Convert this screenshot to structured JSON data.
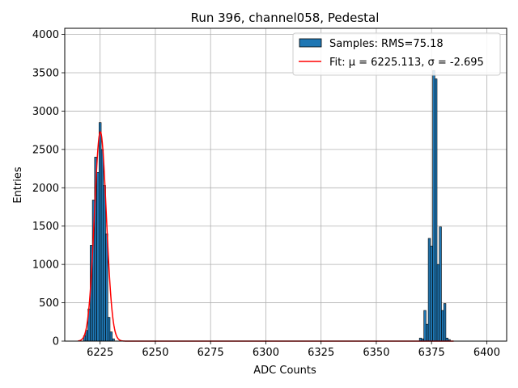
{
  "chart_data": {
    "type": "bar",
    "title": "Run 396, channel058, Pedestal",
    "xlabel": "ADC Counts",
    "ylabel": "Entries",
    "xlim": [
      6209,
      6409
    ],
    "ylim": [
      0,
      4080
    ],
    "xticks": [
      6225,
      6250,
      6275,
      6300,
      6325,
      6350,
      6375,
      6400
    ],
    "yticks": [
      0,
      500,
      1000,
      1500,
      2000,
      2500,
      3000,
      3500,
      4000
    ],
    "grid": true,
    "legend_position": "top-right",
    "colors": {
      "bar": "#1f77b4",
      "fit": "#ff0000",
      "edge": "#000000",
      "grid": "#b0b0b0"
    },
    "histogram": {
      "name": "Samples: RMS=75.18",
      "bin_width": 1,
      "bins": [
        [
          6218,
          70
        ],
        [
          6219,
          140
        ],
        [
          6220,
          420
        ],
        [
          6221,
          1250
        ],
        [
          6222,
          1840
        ],
        [
          6223,
          2400
        ],
        [
          6224,
          2200
        ],
        [
          6225,
          2850
        ],
        [
          6226,
          2500
        ],
        [
          6227,
          2030
        ],
        [
          6228,
          1400
        ],
        [
          6229,
          310
        ],
        [
          6230,
          120
        ],
        [
          6231,
          30
        ],
        [
          6370,
          40
        ],
        [
          6371,
          30
        ],
        [
          6372,
          400
        ],
        [
          6373,
          220
        ],
        [
          6374,
          1340
        ],
        [
          6375,
          1240
        ],
        [
          6376,
          3530
        ],
        [
          6377,
          3420
        ],
        [
          6378,
          1000
        ],
        [
          6379,
          1490
        ],
        [
          6380,
          400
        ],
        [
          6381,
          490
        ],
        [
          6382,
          40
        ],
        [
          6383,
          20
        ]
      ]
    },
    "fit": {
      "name": "Fit: μ = 6225.113, σ = -2.695",
      "mu": 6225.113,
      "sigma": -2.695,
      "amplitude": 2730,
      "x_range": [
        6215,
        6385
      ]
    }
  }
}
